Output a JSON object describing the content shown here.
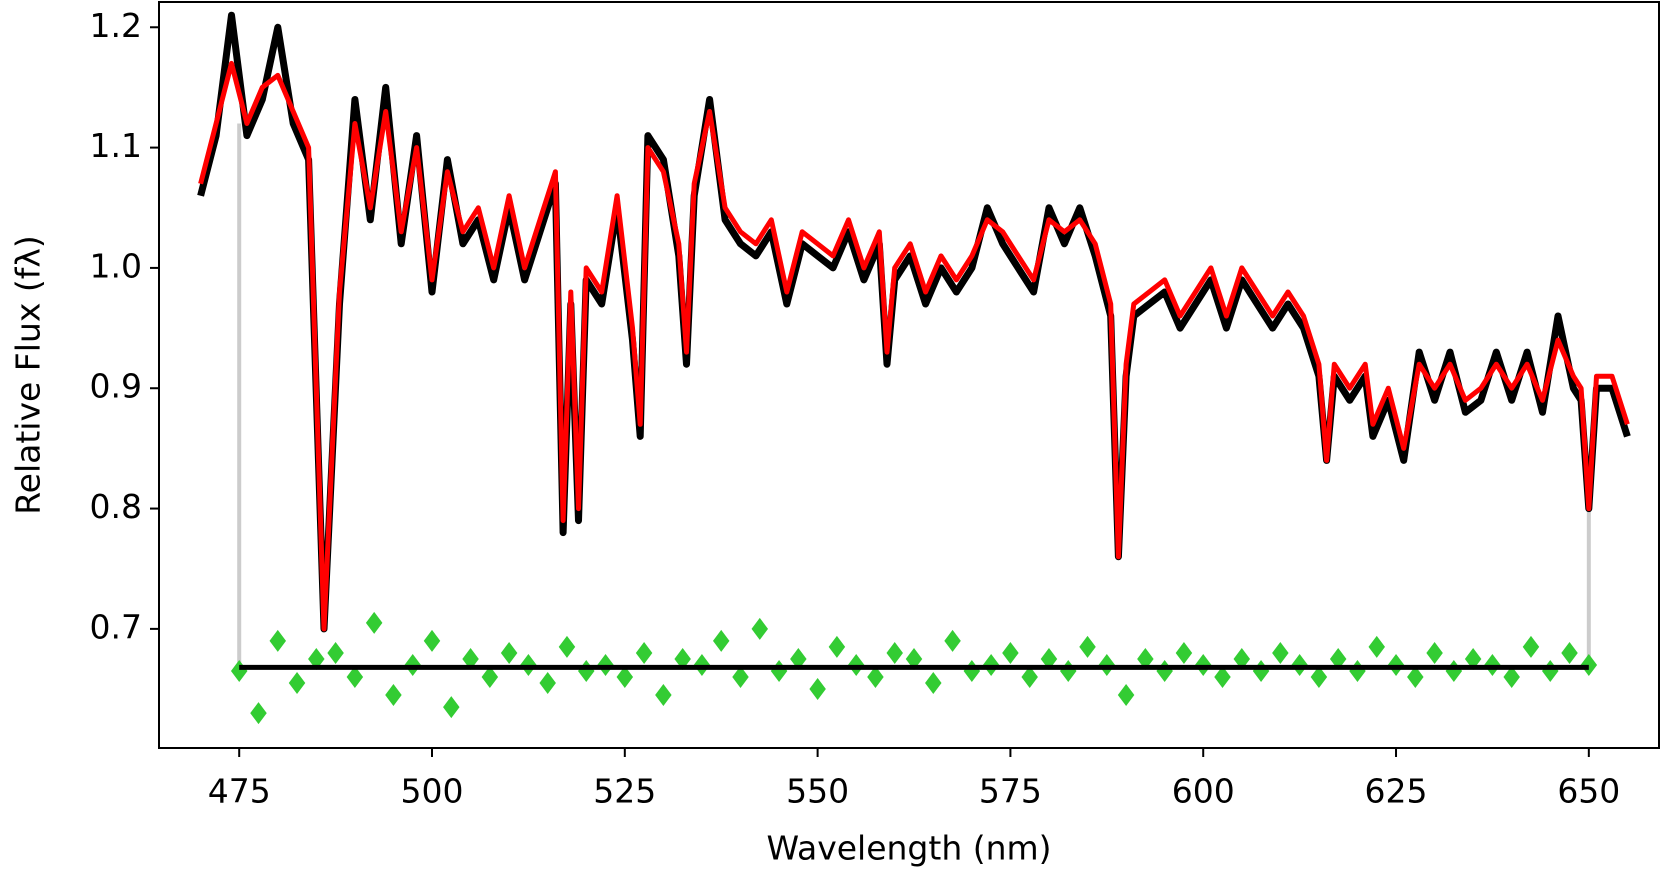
{
  "chart_data": {
    "type": "line",
    "xlabel": "Wavelength (nm)",
    "ylabel": "Relative Flux (fλ)",
    "xlim": [
      464.6,
      659.1
    ],
    "ylim": [
      0.601,
      1.221
    ],
    "xticks": [
      475,
      500,
      525,
      550,
      575,
      600,
      625,
      650
    ],
    "yticks": [
      0.7,
      0.8,
      0.9,
      {
        "value": 1,
        "label": "1.0"
      },
      1.1,
      1.2
    ],
    "x": [
      470,
      472,
      474,
      476,
      478,
      480,
      482,
      484,
      486,
      488,
      490,
      492,
      494,
      496,
      498,
      500,
      502,
      504,
      506,
      508,
      510,
      512,
      514,
      516,
      517,
      518,
      519,
      520,
      522,
      524,
      526,
      527,
      528,
      530,
      532,
      533,
      534,
      536,
      538,
      540,
      542,
      544,
      546,
      548,
      550,
      552,
      554,
      556,
      558,
      559,
      560,
      562,
      564,
      566,
      568,
      570,
      572,
      574,
      576,
      578,
      580,
      582,
      584,
      586,
      588,
      589,
      590,
      591,
      593,
      595,
      597,
      599,
      601,
      603,
      605,
      607,
      609,
      611,
      613,
      615,
      616,
      617,
      619,
      621,
      622,
      624,
      626,
      628,
      630,
      632,
      634,
      636,
      638,
      640,
      642,
      644,
      646,
      648,
      649,
      650,
      651,
      653,
      655
    ],
    "series": [
      {
        "color": "#000000",
        "values": [
          1.06,
          1.11,
          1.21,
          1.11,
          1.14,
          1.2,
          1.12,
          1.09,
          0.7,
          0.97,
          1.14,
          1.04,
          1.15,
          1.02,
          1.11,
          0.98,
          1.09,
          1.02,
          1.04,
          0.99,
          1.05,
          0.99,
          1.03,
          1.07,
          0.78,
          0.97,
          0.79,
          0.99,
          0.97,
          1.05,
          0.94,
          0.86,
          1.11,
          1.09,
          1.01,
          0.92,
          1.06,
          1.14,
          1.04,
          1.02,
          1.01,
          1.03,
          0.97,
          1.02,
          1.01,
          1.0,
          1.03,
          0.99,
          1.02,
          0.92,
          0.99,
          1.01,
          0.97,
          1.0,
          0.98,
          1.0,
          1.05,
          1.02,
          1.0,
          0.98,
          1.05,
          1.02,
          1.05,
          1.01,
          0.96,
          0.76,
          0.91,
          0.96,
          0.97,
          0.98,
          0.95,
          0.97,
          0.99,
          0.95,
          0.99,
          0.97,
          0.95,
          0.97,
          0.95,
          0.91,
          0.84,
          0.91,
          0.89,
          0.91,
          0.86,
          0.89,
          0.84,
          0.93,
          0.89,
          0.93,
          0.88,
          0.89,
          0.93,
          0.89,
          0.93,
          0.88,
          0.96,
          0.9,
          0.89,
          0.8,
          0.9,
          0.9,
          0.86
        ]
      },
      {
        "color": "#ff0000",
        "values": [
          1.07,
          1.12,
          1.17,
          1.12,
          1.15,
          1.16,
          1.13,
          1.1,
          0.7,
          0.98,
          1.12,
          1.05,
          1.13,
          1.03,
          1.1,
          0.99,
          1.08,
          1.03,
          1.05,
          1.0,
          1.06,
          1.0,
          1.04,
          1.08,
          0.79,
          0.98,
          0.8,
          1.0,
          0.98,
          1.06,
          0.95,
          0.87,
          1.1,
          1.08,
          1.02,
          0.93,
          1.07,
          1.13,
          1.05,
          1.03,
          1.02,
          1.04,
          0.98,
          1.03,
          1.02,
          1.01,
          1.04,
          1.0,
          1.03,
          0.93,
          1.0,
          1.02,
          0.98,
          1.01,
          0.99,
          1.01,
          1.04,
          1.03,
          1.01,
          0.99,
          1.04,
          1.03,
          1.04,
          1.02,
          0.97,
          0.76,
          0.92,
          0.97,
          0.98,
          0.99,
          0.96,
          0.98,
          1.0,
          0.96,
          1.0,
          0.98,
          0.96,
          0.98,
          0.96,
          0.92,
          0.84,
          0.92,
          0.9,
          0.92,
          0.87,
          0.9,
          0.85,
          0.92,
          0.9,
          0.92,
          0.89,
          0.9,
          0.92,
          0.9,
          0.92,
          0.89,
          0.94,
          0.91,
          0.9,
          0.8,
          0.91,
          0.91,
          0.87
        ]
      }
    ],
    "residuals": {
      "color": "#33cc33",
      "x": [
        475,
        477.5,
        480,
        482.5,
        485,
        487.5,
        490,
        492.5,
        495,
        497.5,
        500,
        502.5,
        505,
        507.5,
        510,
        512.5,
        515,
        517.5,
        520,
        522.5,
        525,
        527.5,
        530,
        532.5,
        535,
        537.5,
        540,
        542.5,
        545,
        547.5,
        550,
        552.5,
        555,
        557.5,
        560,
        562.5,
        565,
        567.5,
        570,
        572.5,
        575,
        577.5,
        580,
        582.5,
        585,
        587.5,
        590,
        592.5,
        595,
        597.5,
        600,
        602.5,
        605,
        607.5,
        610,
        612.5,
        615,
        617.5,
        620,
        622.5,
        625,
        627.5,
        630,
        632.5,
        635,
        637.5,
        640,
        642.5,
        645,
        647.5,
        650
      ],
      "values": [
        0.665,
        0.63,
        0.69,
        0.655,
        0.675,
        0.68,
        0.66,
        0.705,
        0.645,
        0.67,
        0.69,
        0.635,
        0.675,
        0.66,
        0.68,
        0.67,
        0.655,
        0.685,
        0.665,
        0.67,
        0.66,
        0.68,
        0.645,
        0.675,
        0.67,
        0.69,
        0.66,
        0.7,
        0.665,
        0.675,
        0.65,
        0.685,
        0.67,
        0.66,
        0.68,
        0.675,
        0.655,
        0.69,
        0.665,
        0.67,
        0.68,
        0.66,
        0.675,
        0.665,
        0.685,
        0.67,
        0.645,
        0.675,
        0.665,
        0.68,
        0.67,
        0.66,
        0.675,
        0.665,
        0.68,
        0.67,
        0.66,
        0.675,
        0.665,
        0.685,
        0.67,
        0.66,
        0.68,
        0.665,
        0.675,
        0.67,
        0.66,
        0.685,
        0.665,
        0.68,
        0.67
      ]
    },
    "hline": {
      "y": 0.668,
      "xmin": 475,
      "xmax": 650,
      "color": "#000000"
    },
    "vlines": [
      {
        "x": 475,
        "ymin": 0.668,
        "ymax": 1.12,
        "color": "#cccccc"
      },
      {
        "x": 650,
        "ymin": 0.668,
        "ymax": 0.8,
        "color": "#cccccc"
      }
    ]
  }
}
